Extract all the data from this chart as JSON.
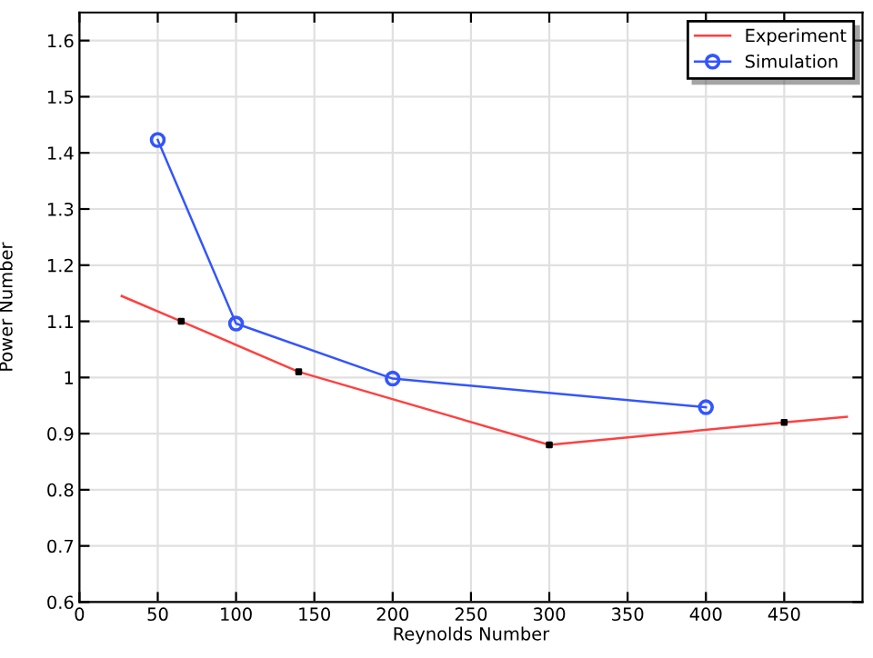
{
  "chart_data": {
    "type": "line",
    "xlabel": "Reynolds Number",
    "ylabel": "Power Number",
    "xlim": [
      0,
      500
    ],
    "ylim": [
      0.6,
      1.65
    ],
    "xticks": [
      0,
      50,
      100,
      150,
      200,
      250,
      300,
      350,
      400,
      450
    ],
    "yticks": [
      0.6,
      0.7,
      0.8,
      0.9,
      1,
      1.1,
      1.2,
      1.3,
      1.4,
      1.5,
      1.6
    ],
    "grid": true,
    "legend": "top right",
    "series": [
      {
        "name": "Experiment",
        "color": "#ff4040",
        "marker": "none",
        "x": [
          27,
          65,
          140,
          300,
          450,
          490
        ],
        "values": [
          1.145,
          1.1,
          1.01,
          0.88,
          0.92,
          0.93
        ]
      },
      {
        "type": "scatter",
        "color": "#000000",
        "marker": "square",
        "x": [
          65,
          140,
          300,
          450
        ],
        "values": [
          1.1,
          1.01,
          0.88,
          0.92
        ]
      },
      {
        "name": "Simulation",
        "color": "#3355ff",
        "marker": "circle",
        "x": [
          50,
          100,
          200,
          400
        ],
        "values": [
          1.423,
          1.096,
          0.998,
          0.947
        ]
      }
    ]
  }
}
